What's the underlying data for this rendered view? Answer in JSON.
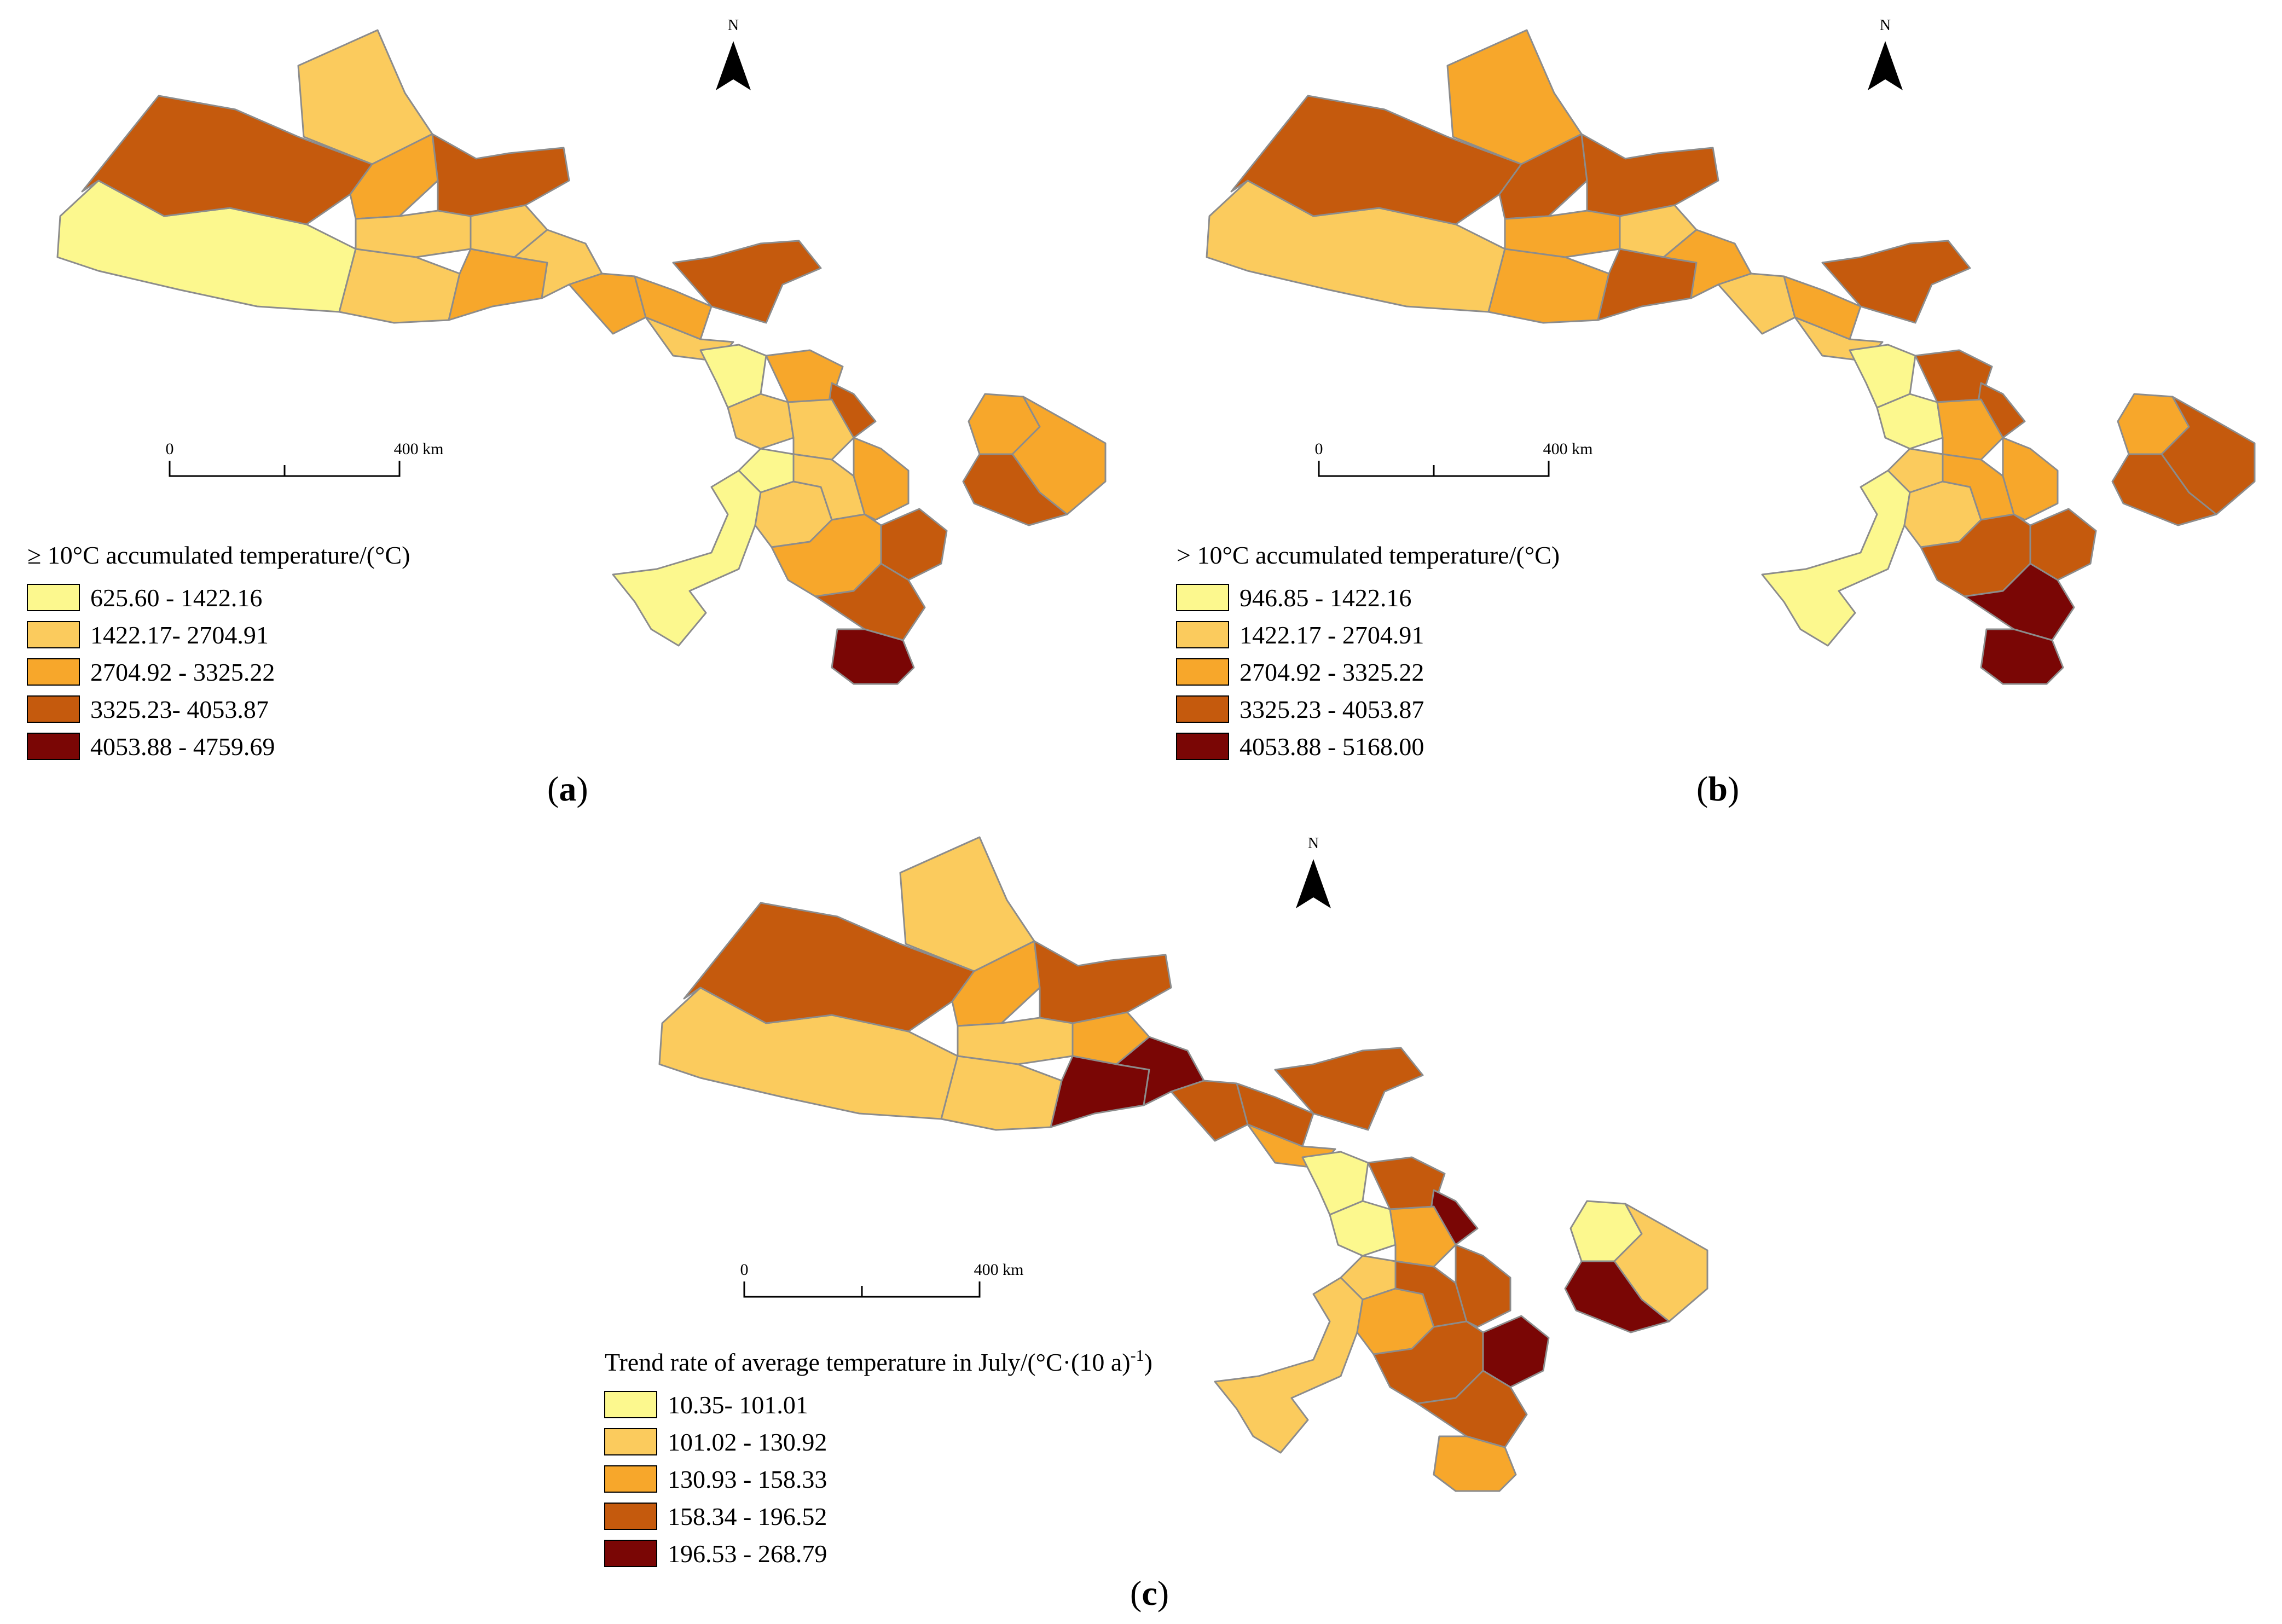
{
  "panels": [
    {
      "id": "a",
      "caption_letter": "a",
      "north_label": "N",
      "scale": {
        "start": "0",
        "end": "400 km"
      },
      "legend": {
        "title": "≥ 10°C accumulated temperature/(°C)",
        "classes": [
          {
            "label": "625.60 - 1422.16",
            "color": "#fcf88e"
          },
          {
            "label": "1422.17- 2704.91",
            "color": "#fbcb5d"
          },
          {
            "label": "2704.92 - 3325.22",
            "color": "#f7a72b"
          },
          {
            "label": "3325.23- 4053.87",
            "color": "#c55a0d"
          },
          {
            "label": "4053.88 - 4759.69",
            "color": "#7a0605"
          }
        ]
      }
    },
    {
      "id": "b",
      "caption_letter": "b",
      "north_label": "N",
      "scale": {
        "start": "0",
        "end": "400 km"
      },
      "legend": {
        "title": "> 10°C accumulated temperature/(°C)",
        "classes": [
          {
            "label": "946.85 - 1422.16",
            "color": "#fcf88e"
          },
          {
            "label": "1422.17 - 2704.91",
            "color": "#fbcb5d"
          },
          {
            "label": "2704.92 - 3325.22",
            "color": "#f7a72b"
          },
          {
            "label": "3325.23 - 4053.87",
            "color": "#c55a0d"
          },
          {
            "label": "4053.88 - 5168.00",
            "color": "#7a0605"
          }
        ]
      }
    },
    {
      "id": "c",
      "caption_letter": "c",
      "north_label": "N",
      "scale": {
        "start": "0",
        "end": "400 km"
      },
      "legend": {
        "title": "Trend rate of average temperature in July/(°C·(10 a)",
        "title_superscript": "-1",
        "title_close": ")",
        "classes": [
          {
            "label": "10.35- 101.01",
            "color": "#fcf88e"
          },
          {
            "label": "101.02 - 130.92",
            "color": "#fbcb5d"
          },
          {
            "label": "130.93 - 158.33",
            "color": "#f7a72b"
          },
          {
            "label": "158.34 - 196.52",
            "color": "#c55a0d"
          },
          {
            "label": "196.53 - 268.79",
            "color": "#7a0605"
          }
        ]
      }
    }
  ],
  "map_region_classes": {
    "a": [
      1,
      0,
      3,
      2,
      3,
      1,
      1,
      1,
      2,
      1,
      2,
      2,
      3,
      1,
      0,
      1,
      2,
      3,
      1,
      0,
      0,
      1,
      1,
      2,
      3,
      2,
      3,
      4,
      2,
      2,
      3
    ],
    "b": [
      2,
      1,
      3,
      3,
      3,
      2,
      2,
      1,
      3,
      2,
      1,
      2,
      3,
      1,
      0,
      0,
      3,
      3,
      2,
      1,
      0,
      1,
      2,
      2,
      3,
      3,
      4,
      4,
      2,
      3,
      3
    ],
    "c": [
      1,
      1,
      3,
      2,
      3,
      1,
      1,
      2,
      4,
      4,
      3,
      3,
      3,
      2,
      0,
      0,
      3,
      4,
      2,
      1,
      1,
      2,
      3,
      3,
      4,
      3,
      3,
      2,
      0,
      1,
      4
    ]
  }
}
